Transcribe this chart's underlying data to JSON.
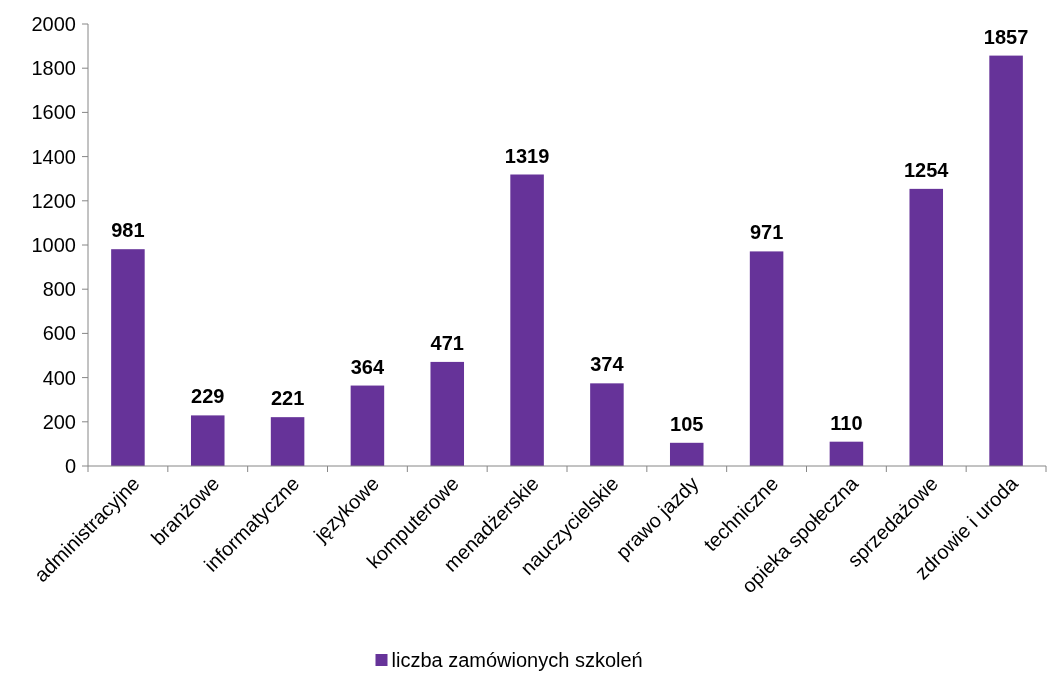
{
  "chart_data": {
    "type": "bar",
    "categories": [
      "administracyjne",
      "branżowe",
      "informatyczne",
      "językowe",
      "komputerowe",
      "menadżerskie",
      "nauczycielskie",
      "prawo jazdy",
      "techniczne",
      "opieka społeczna",
      "sprzedażowe",
      "zdrowie i uroda"
    ],
    "series": [
      {
        "name": "liczba zamówionych szkoleń",
        "color": "#663399",
        "values": [
          981,
          229,
          221,
          364,
          471,
          1319,
          374,
          105,
          971,
          110,
          1254,
          1857
        ]
      }
    ],
    "ylim": [
      0,
      2000
    ],
    "yticks": [
      0,
      200,
      400,
      600,
      800,
      1000,
      1200,
      1400,
      1600,
      1800,
      2000
    ],
    "data_labels": true,
    "legend": "bottom",
    "grid": false
  }
}
